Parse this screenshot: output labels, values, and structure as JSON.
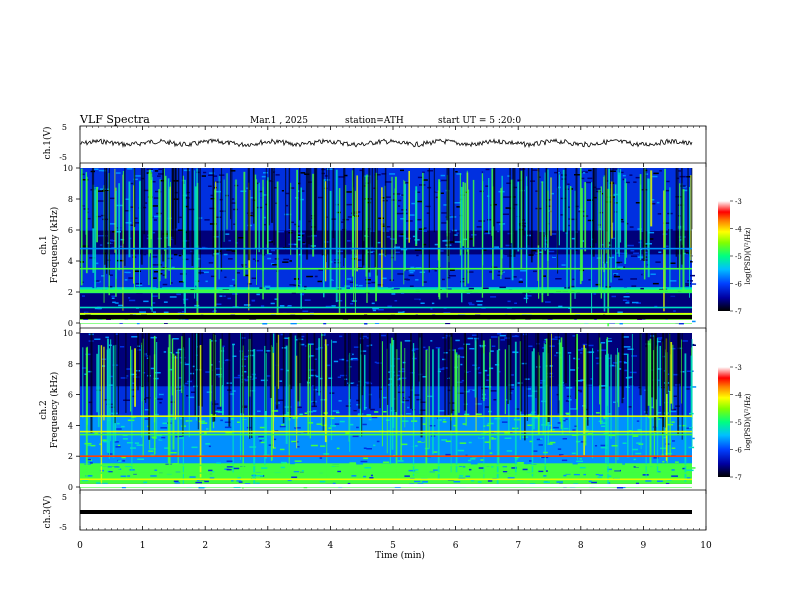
{
  "header": {
    "title": "VLF Spectra",
    "date": "Mar.1 , 2025",
    "station": "station=ATH",
    "start": "start UT = 5 :20:0"
  },
  "chart_data": [
    {
      "type": "line",
      "panel": "ch1-waveform",
      "ylabel": "ch.1(V)",
      "ylim": [
        -5,
        5
      ],
      "yticks": [
        "5",
        "-5"
      ],
      "xlim": [
        0,
        10
      ],
      "description_value": "noisy waveform around ~0 V"
    },
    {
      "type": "heatmap",
      "panel": "ch1-spectrogram",
      "ylabel_top": "ch.1",
      "ylabel": "Frequency (kHz)",
      "ylim": [
        0,
        10
      ],
      "yticks": [
        "0",
        "2",
        "4",
        "6",
        "8",
        "10"
      ],
      "xlim": [
        0,
        9.8
      ],
      "colorbar": {
        "label": "log(PSD)(V²/Hz)",
        "range": [
          -7,
          -3
        ],
        "ticks": [
          "-3",
          "-4",
          "-5",
          "-6",
          "-7"
        ]
      }
    },
    {
      "type": "heatmap",
      "panel": "ch2-spectrogram",
      "ylabel_top": "ch.2",
      "ylabel": "Frequency (kHz)",
      "ylim": [
        0,
        10
      ],
      "yticks": [
        "0",
        "2",
        "4",
        "6",
        "8",
        "10"
      ],
      "xlim": [
        0,
        9.8
      ],
      "colorbar": {
        "label": "log(PSD)(V²/Hz)",
        "range": [
          -7,
          -3
        ],
        "ticks": [
          "-3",
          "-4",
          "-5",
          "-6",
          "-7"
        ]
      }
    },
    {
      "type": "line",
      "panel": "ch3-waveform",
      "ylabel": "ch.3(V)",
      "ylim": [
        -5,
        5
      ],
      "yticks": [
        "5",
        "-5"
      ],
      "series": [
        {
          "values": [
            -1,
            -1
          ]
        }
      ],
      "xlim": [
        0,
        10
      ]
    }
  ],
  "xaxis": {
    "label": "Time (min)",
    "ticks": [
      "0",
      "1",
      "2",
      "3",
      "4",
      "5",
      "6",
      "7",
      "8",
      "9",
      "10"
    ],
    "range": [
      0,
      10
    ]
  }
}
